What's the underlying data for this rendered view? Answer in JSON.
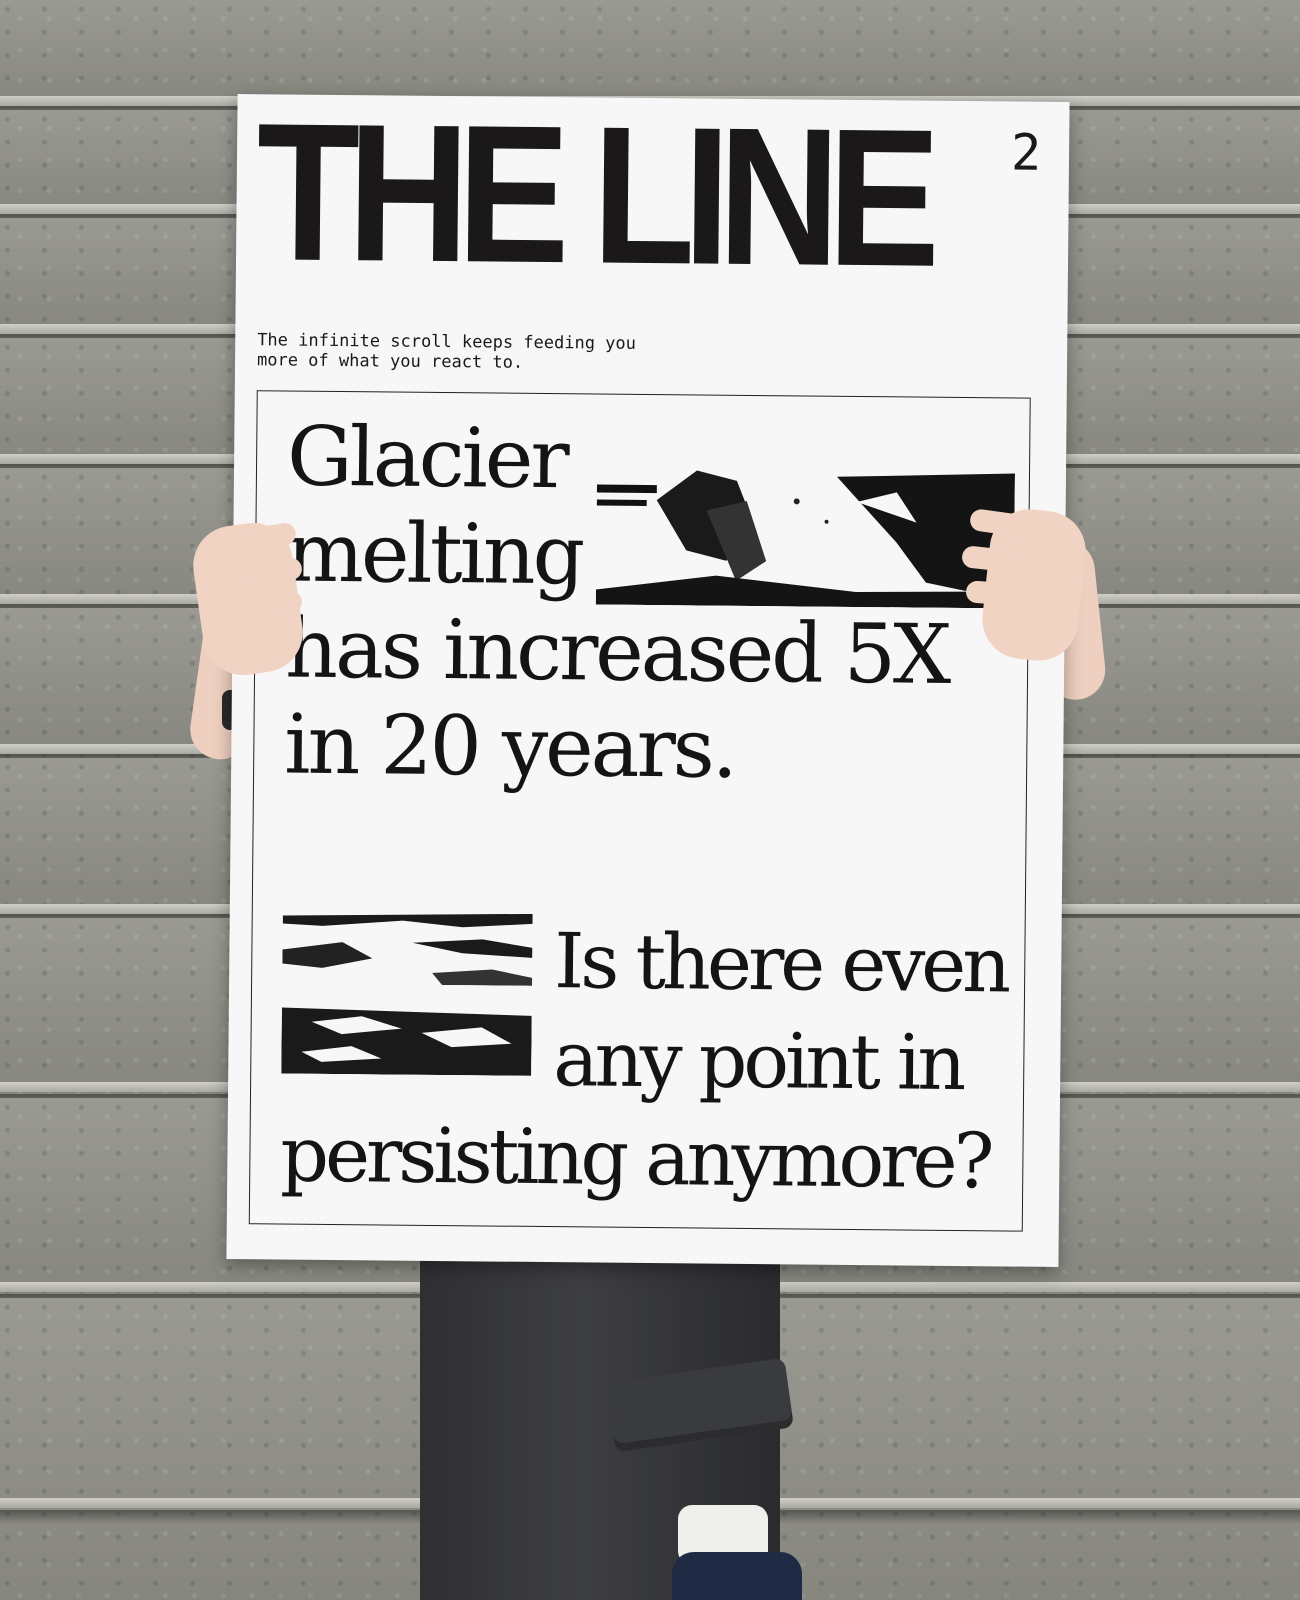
{
  "poster": {
    "masthead": "THE LINE",
    "issue_number": "2",
    "tagline": "The infinite scroll keeps feeding you\nmore of what you react to.",
    "headline_lines": [
      "Glacier",
      "melting",
      "has increased 5X",
      "in 20 years."
    ],
    "question_lines": [
      "Is there even",
      "any point in",
      "persisting anymore?"
    ]
  },
  "colors": {
    "ink": "#141414",
    "paper": "#f7f7f7",
    "stone": "#8d8d87"
  }
}
